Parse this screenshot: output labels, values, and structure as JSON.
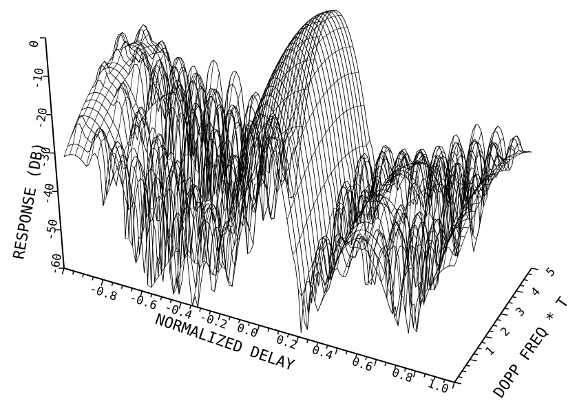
{
  "chart_data": {
    "type": "surface",
    "xlabel": "NORMALIZED DELAY",
    "ylabel": "DOPP FREQ * T",
    "zlabel": "RESPONSE (DB)",
    "x_ticks": [
      "-0.8",
      "-0.6",
      "-0.4",
      "-0.2",
      "0.0",
      "0.2",
      "0.4",
      "0.6",
      "0.8",
      "1.0"
    ],
    "y_ticks": [
      "1",
      "2",
      "3",
      "4",
      "5"
    ],
    "z_ticks": [
      "0",
      "-10",
      "-20",
      "-30",
      "-40",
      "-50",
      "-60"
    ],
    "xlim": [
      -1.0,
      1.0
    ],
    "ylim": [
      0,
      5
    ],
    "zlim": [
      -60,
      0
    ],
    "grid": false,
    "peaks": [
      {
        "x": 0.0,
        "y": 2.5,
        "z": 0
      },
      {
        "x": -0.95,
        "y": 2.5,
        "z": -22
      },
      {
        "x": 1.0,
        "y": 2.5,
        "z": -22
      },
      {
        "x": 0.45,
        "y": 2.5,
        "z": -33
      }
    ]
  }
}
